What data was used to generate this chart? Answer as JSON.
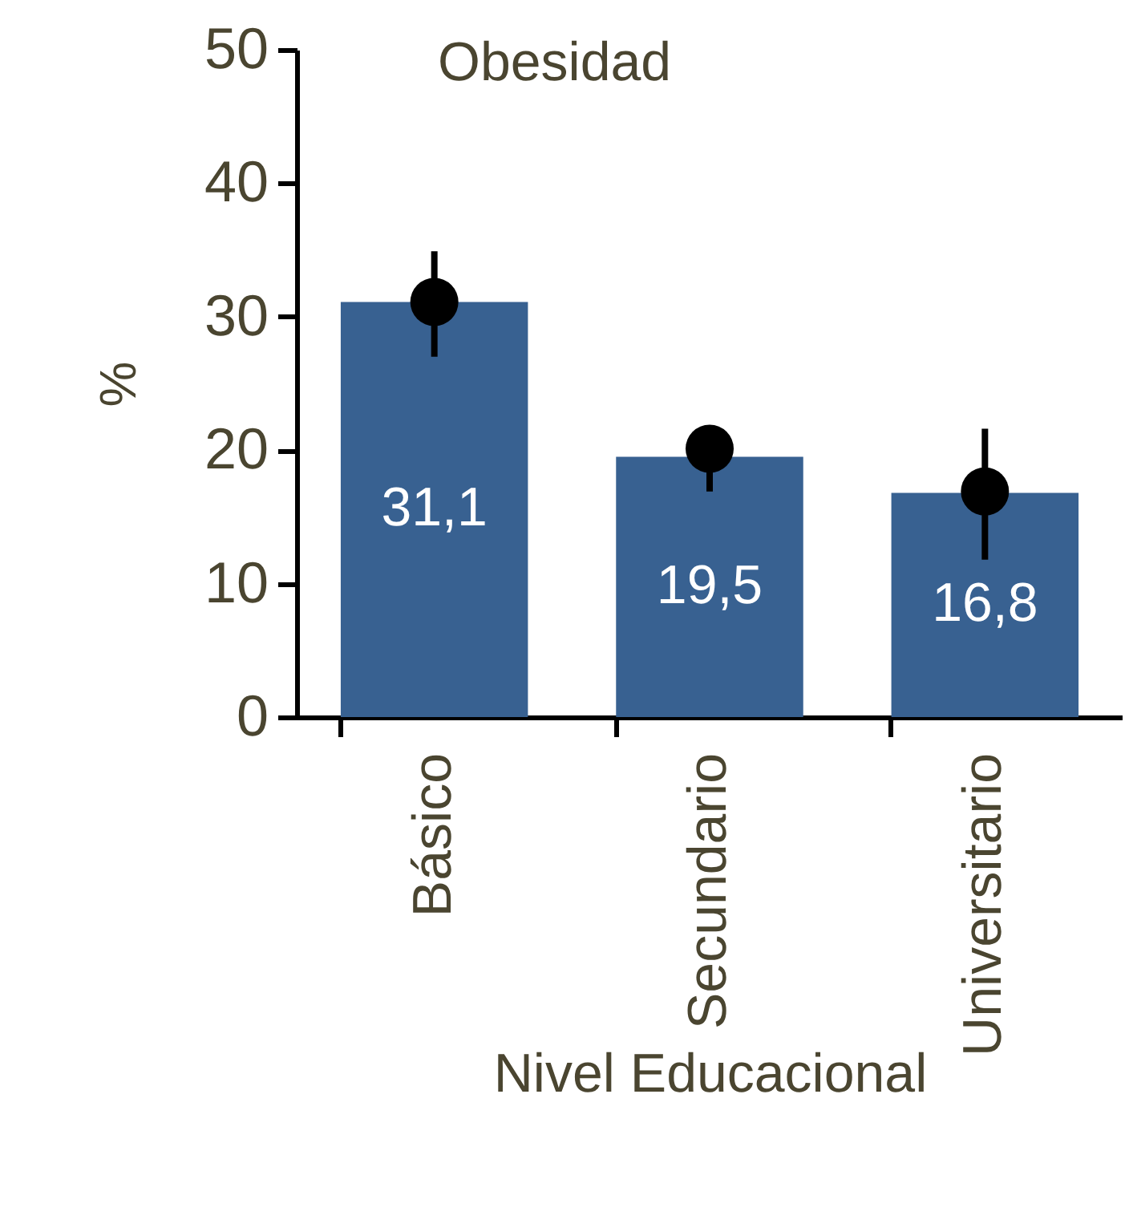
{
  "chart_data": {
    "type": "bar",
    "title": "Obesidad",
    "xlabel": "Nivel Educacional",
    "ylabel": "%",
    "categories": [
      "Básico",
      "Secundario",
      "Universitario"
    ],
    "series": [
      {
        "type": "bar",
        "color": "#386191",
        "values": [
          31.1,
          19.5,
          16.8
        ],
        "value_labels": [
          "31,1",
          "19,5",
          "16,8"
        ]
      },
      {
        "type": "scatter",
        "color": "#000000",
        "x": [
          "Básico",
          "Secundario",
          "Universitario"
        ],
        "values": [
          31.1,
          20.1,
          16.9
        ],
        "errors": [
          [
            27.0,
            34.9
          ],
          [
            16.9,
            21.6
          ],
          [
            11.8,
            21.6
          ]
        ]
      }
    ],
    "ylim": [
      0,
      50
    ],
    "yticks": [
      0,
      10,
      20,
      30,
      40,
      50
    ],
    "grid": false,
    "marker": "circle"
  }
}
